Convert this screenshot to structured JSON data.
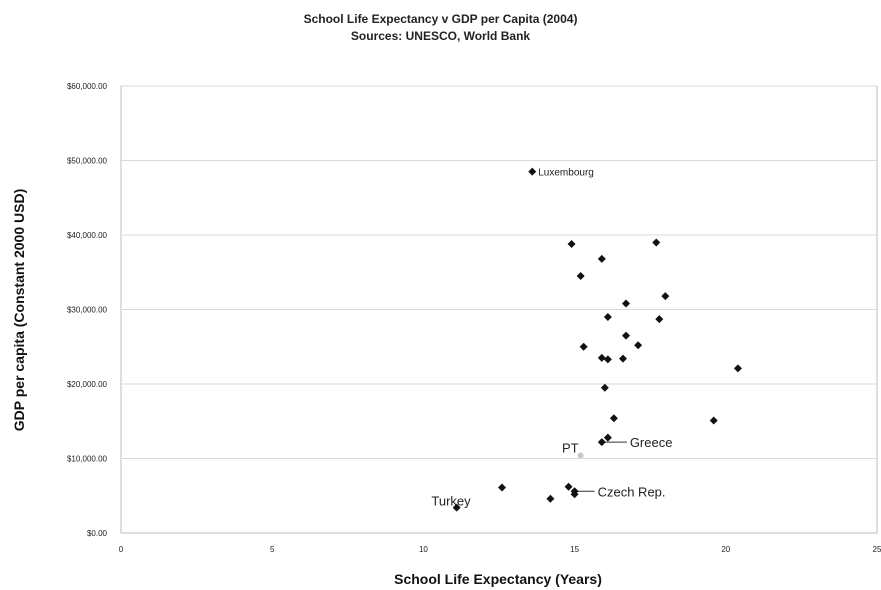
{
  "chart_data": {
    "type": "scatter",
    "title": "School Life Expectancy v GDP per Capita (2004)",
    "subtitle": "Sources: UNESCO, World Bank",
    "xlabel": "School Life Expectancy (Years)",
    "ylabel": "GDP per capita (Constant 2000 USD)",
    "xlim": [
      0,
      25
    ],
    "ylim": [
      0,
      60000
    ],
    "xticks": [
      0,
      5,
      10,
      15,
      20,
      25
    ],
    "yticks": [
      0,
      10000,
      20000,
      30000,
      40000,
      50000,
      60000
    ],
    "ytick_labels": [
      "$0.00",
      "$10,000.00",
      "$20,000.00",
      "$30,000.00",
      "$40,000.00",
      "$50,000.00",
      "$60,000.00"
    ],
    "grid": true,
    "marker_color": "#111111",
    "gridline_color": "#d9d9d9",
    "points": [
      {
        "x": 13.6,
        "y": 48500,
        "label": "Luxembourg"
      },
      {
        "x": 14.9,
        "y": 38800
      },
      {
        "x": 15.9,
        "y": 36800
      },
      {
        "x": 17.7,
        "y": 39000
      },
      {
        "x": 15.2,
        "y": 34500
      },
      {
        "x": 18.0,
        "y": 31800
      },
      {
        "x": 16.7,
        "y": 30800
      },
      {
        "x": 16.1,
        "y": 29000
      },
      {
        "x": 17.8,
        "y": 28700
      },
      {
        "x": 16.7,
        "y": 26500
      },
      {
        "x": 15.3,
        "y": 25000
      },
      {
        "x": 17.1,
        "y": 25200
      },
      {
        "x": 15.9,
        "y": 23500
      },
      {
        "x": 16.1,
        "y": 23300
      },
      {
        "x": 16.6,
        "y": 23400
      },
      {
        "x": 20.4,
        "y": 22100
      },
      {
        "x": 16.0,
        "y": 19500
      },
      {
        "x": 16.3,
        "y": 15400
      },
      {
        "x": 19.6,
        "y": 15100
      },
      {
        "x": 16.1,
        "y": 12800
      },
      {
        "x": 15.9,
        "y": 12200,
        "label": "Greece"
      },
      {
        "x": 15.2,
        "y": 10400,
        "label": "PT"
      },
      {
        "x": 12.6,
        "y": 6100
      },
      {
        "x": 14.8,
        "y": 6200
      },
      {
        "x": 15.0,
        "y": 5600,
        "label": "Czech Rep."
      },
      {
        "x": 15.0,
        "y": 5200
      },
      {
        "x": 14.2,
        "y": 4600
      },
      {
        "x": 11.1,
        "y": 3400,
        "label": "Turkey"
      }
    ]
  }
}
